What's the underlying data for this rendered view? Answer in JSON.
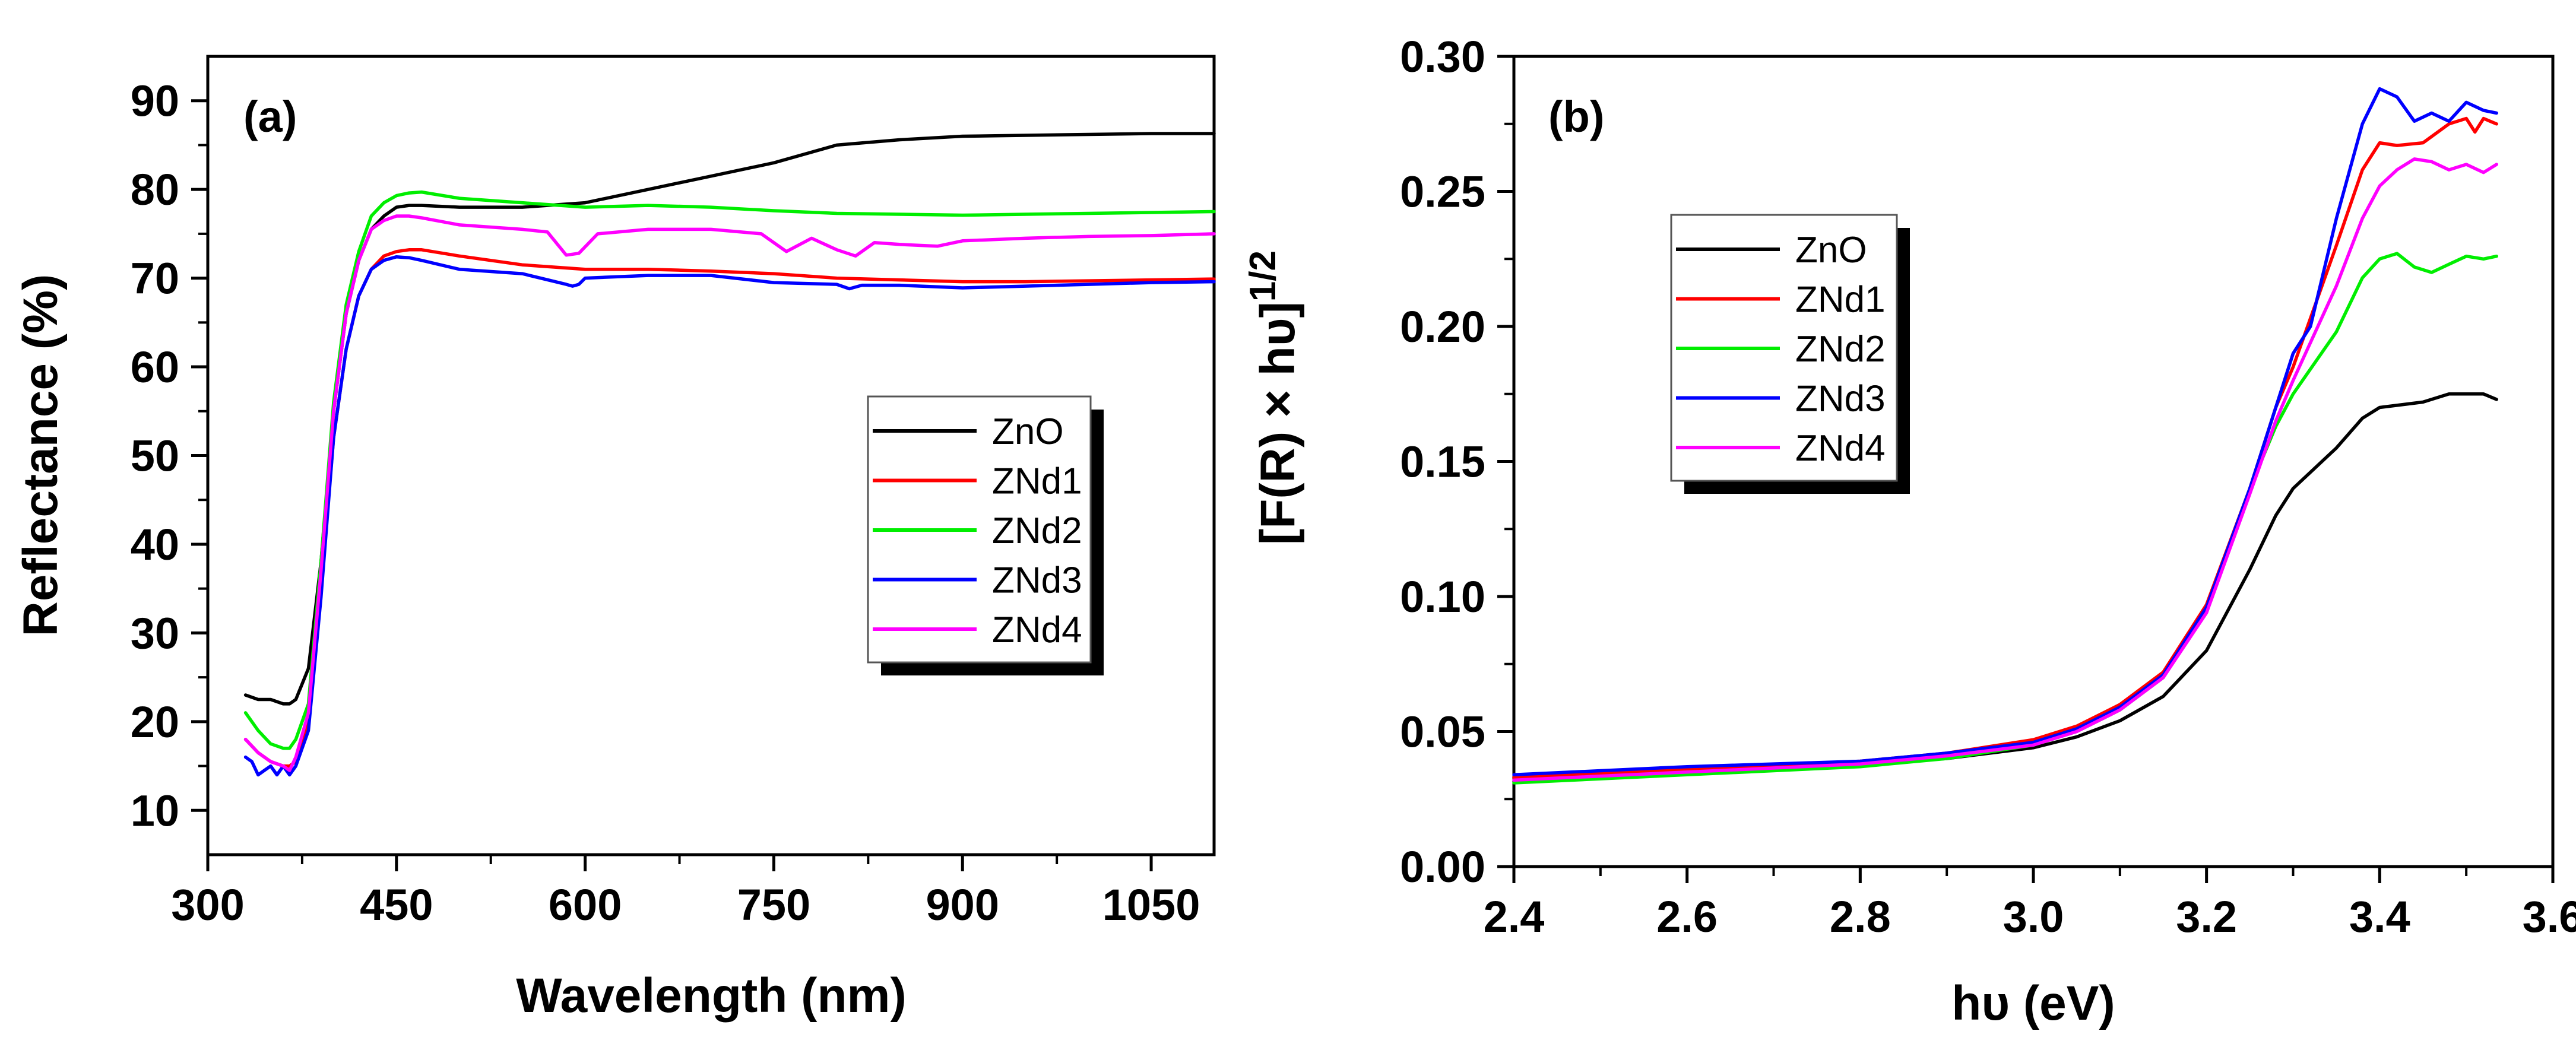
{
  "chart_data": [
    {
      "type": "line",
      "panel_label": "(a)",
      "title": "",
      "xlabel": "Wavelength (nm)",
      "ylabel": "Reflectance (%)",
      "xlim": [
        300,
        1100
      ],
      "ylim": [
        5,
        95
      ],
      "xticks": [
        300,
        450,
        600,
        750,
        900,
        1050
      ],
      "yticks": [
        10,
        20,
        30,
        40,
        50,
        60,
        70,
        80,
        90
      ],
      "legend_position": "center-right",
      "series": [
        {
          "name": "ZnO",
          "color": "#000000",
          "x": [
            330,
            340,
            350,
            360,
            365,
            370,
            380,
            390,
            400,
            410,
            420,
            430,
            440,
            450,
            460,
            470,
            500,
            550,
            600,
            650,
            700,
            750,
            800,
            850,
            900,
            950,
            1000,
            1050,
            1100
          ],
          "y": [
            23,
            22.5,
            22.5,
            22,
            22,
            22.5,
            26,
            38,
            55,
            66,
            72,
            75.5,
            77,
            78,
            78.2,
            78.2,
            78,
            78,
            78.5,
            80,
            81.5,
            83,
            85,
            85.6,
            86,
            86.1,
            86.2,
            86.3,
            86.3
          ]
        },
        {
          "name": "ZNd1",
          "color": "#ff0000",
          "x": [
            330,
            340,
            350,
            360,
            365,
            370,
            380,
            390,
            400,
            410,
            420,
            430,
            440,
            450,
            460,
            470,
            500,
            550,
            600,
            650,
            700,
            750,
            800,
            850,
            900,
            950,
            1000,
            1050,
            1100
          ],
          "y": [
            18,
            16.5,
            15.5,
            15,
            15,
            15.5,
            20,
            35,
            52,
            62,
            68,
            71,
            72.5,
            73,
            73.2,
            73.2,
            72.5,
            71.5,
            71,
            71,
            70.8,
            70.5,
            70,
            69.8,
            69.6,
            69.6,
            69.7,
            69.8,
            69.9
          ]
        },
        {
          "name": "ZNd2",
          "color": "#00ee00",
          "x": [
            330,
            340,
            350,
            360,
            365,
            370,
            380,
            390,
            400,
            410,
            420,
            430,
            440,
            450,
            460,
            470,
            500,
            550,
            600,
            650,
            700,
            750,
            800,
            850,
            900,
            950,
            1000,
            1050,
            1100
          ],
          "y": [
            21,
            19,
            17.5,
            17,
            17,
            18,
            22,
            38,
            56,
            67,
            73,
            77,
            78.5,
            79.3,
            79.6,
            79.7,
            79,
            78.5,
            78,
            78.2,
            78,
            77.6,
            77.3,
            77.2,
            77.1,
            77.2,
            77.3,
            77.4,
            77.5
          ]
        },
        {
          "name": "ZNd3",
          "color": "#0000ff",
          "x": [
            330,
            335,
            340,
            345,
            350,
            355,
            360,
            365,
            370,
            380,
            390,
            400,
            410,
            420,
            430,
            440,
            450,
            460,
            470,
            500,
            550,
            585,
            590,
            595,
            600,
            650,
            700,
            750,
            800,
            810,
            820,
            850,
            900,
            950,
            1000,
            1050,
            1100
          ],
          "y": [
            16,
            15.5,
            14,
            14.5,
            15,
            14,
            15,
            14,
            15,
            19,
            34,
            52,
            62,
            68,
            71,
            72,
            72.4,
            72.3,
            72,
            71,
            70.5,
            69.3,
            69.1,
            69.3,
            70,
            70.3,
            70.3,
            69.5,
            69.3,
            68.8,
            69.2,
            69.2,
            68.9,
            69.1,
            69.3,
            69.5,
            69.6
          ]
        },
        {
          "name": "ZNd4",
          "color": "#ff00ff",
          "x": [
            330,
            340,
            350,
            360,
            365,
            370,
            380,
            390,
            400,
            410,
            420,
            430,
            440,
            450,
            460,
            470,
            500,
            550,
            570,
            585,
            595,
            610,
            650,
            700,
            740,
            760,
            780,
            800,
            815,
            830,
            850,
            880,
            900,
            950,
            1000,
            1050,
            1100
          ],
          "y": [
            18,
            16.5,
            15.5,
            15,
            14.5,
            16,
            21,
            37,
            55,
            66,
            72,
            75.5,
            76.5,
            77,
            77,
            76.8,
            76,
            75.5,
            75.2,
            72.6,
            72.8,
            75,
            75.5,
            75.5,
            75,
            73,
            74.5,
            73.2,
            72.5,
            74,
            73.8,
            73.6,
            74.2,
            74.5,
            74.7,
            74.8,
            75
          ]
        }
      ]
    },
    {
      "type": "line",
      "panel_label": "(b)",
      "title": "",
      "xlabel": "hυ (eV)",
      "ylabel": "[F(R) × hυ]1/2",
      "ylabel_main": "[F(R) × hυ]",
      "ylabel_superscript": "1/2",
      "xlim": [
        2.4,
        3.6
      ],
      "ylim": [
        0.0,
        0.3
      ],
      "xticks": [
        "2.4",
        "2.6",
        "2.8",
        "3.0",
        "3.2",
        "3.4",
        "3.6"
      ],
      "yticks": [
        "0.00",
        "0.05",
        "0.10",
        "0.15",
        "0.20",
        "0.25",
        "0.30"
      ],
      "legend_position": "upper-left",
      "series": [
        {
          "name": "ZnO",
          "color": "#000000",
          "x": [
            2.4,
            2.6,
            2.8,
            2.9,
            3.0,
            3.05,
            3.1,
            3.15,
            3.2,
            3.25,
            3.28,
            3.3,
            3.35,
            3.38,
            3.4,
            3.45,
            3.48,
            3.5,
            3.52,
            3.535
          ],
          "y": [
            0.033,
            0.035,
            0.038,
            0.04,
            0.044,
            0.048,
            0.054,
            0.063,
            0.08,
            0.11,
            0.13,
            0.14,
            0.155,
            0.166,
            0.17,
            0.172,
            0.175,
            0.175,
            0.175,
            0.173
          ]
        },
        {
          "name": "ZNd1",
          "color": "#ff0000",
          "x": [
            2.4,
            2.6,
            2.8,
            2.9,
            3.0,
            3.05,
            3.1,
            3.15,
            3.2,
            3.25,
            3.28,
            3.3,
            3.35,
            3.38,
            3.4,
            3.42,
            3.45,
            3.48,
            3.5,
            3.51,
            3.52,
            3.535
          ],
          "y": [
            0.033,
            0.036,
            0.039,
            0.042,
            0.047,
            0.052,
            0.06,
            0.072,
            0.097,
            0.14,
            0.17,
            0.185,
            0.23,
            0.258,
            0.268,
            0.267,
            0.268,
            0.275,
            0.277,
            0.272,
            0.277,
            0.275
          ]
        },
        {
          "name": "ZNd2",
          "color": "#00ee00",
          "x": [
            2.4,
            2.6,
            2.8,
            2.9,
            3.0,
            3.05,
            3.1,
            3.15,
            3.2,
            3.25,
            3.28,
            3.3,
            3.35,
            3.38,
            3.4,
            3.42,
            3.44,
            3.46,
            3.48,
            3.5,
            3.52,
            3.535
          ],
          "y": [
            0.031,
            0.034,
            0.037,
            0.04,
            0.045,
            0.05,
            0.058,
            0.07,
            0.095,
            0.14,
            0.163,
            0.175,
            0.198,
            0.218,
            0.225,
            0.227,
            0.222,
            0.22,
            0.223,
            0.226,
            0.225,
            0.226
          ]
        },
        {
          "name": "ZNd3",
          "color": "#0000ff",
          "x": [
            2.4,
            2.6,
            2.8,
            2.9,
            3.0,
            3.05,
            3.1,
            3.15,
            3.2,
            3.25,
            3.28,
            3.3,
            3.32,
            3.35,
            3.38,
            3.4,
            3.42,
            3.44,
            3.46,
            3.48,
            3.5,
            3.52,
            3.535
          ],
          "y": [
            0.034,
            0.037,
            0.039,
            0.042,
            0.046,
            0.051,
            0.059,
            0.071,
            0.096,
            0.14,
            0.17,
            0.19,
            0.2,
            0.24,
            0.275,
            0.288,
            0.285,
            0.276,
            0.279,
            0.276,
            0.283,
            0.28,
            0.279
          ]
        },
        {
          "name": "ZNd4",
          "color": "#ff00ff",
          "x": [
            2.4,
            2.6,
            2.8,
            2.9,
            3.0,
            3.05,
            3.1,
            3.15,
            3.2,
            3.25,
            3.28,
            3.3,
            3.35,
            3.38,
            3.4,
            3.42,
            3.44,
            3.46,
            3.48,
            3.5,
            3.52,
            3.535
          ],
          "y": [
            0.032,
            0.035,
            0.038,
            0.041,
            0.045,
            0.05,
            0.058,
            0.07,
            0.094,
            0.138,
            0.165,
            0.18,
            0.215,
            0.24,
            0.252,
            0.258,
            0.262,
            0.261,
            0.258,
            0.26,
            0.257,
            0.26
          ]
        }
      ]
    }
  ]
}
